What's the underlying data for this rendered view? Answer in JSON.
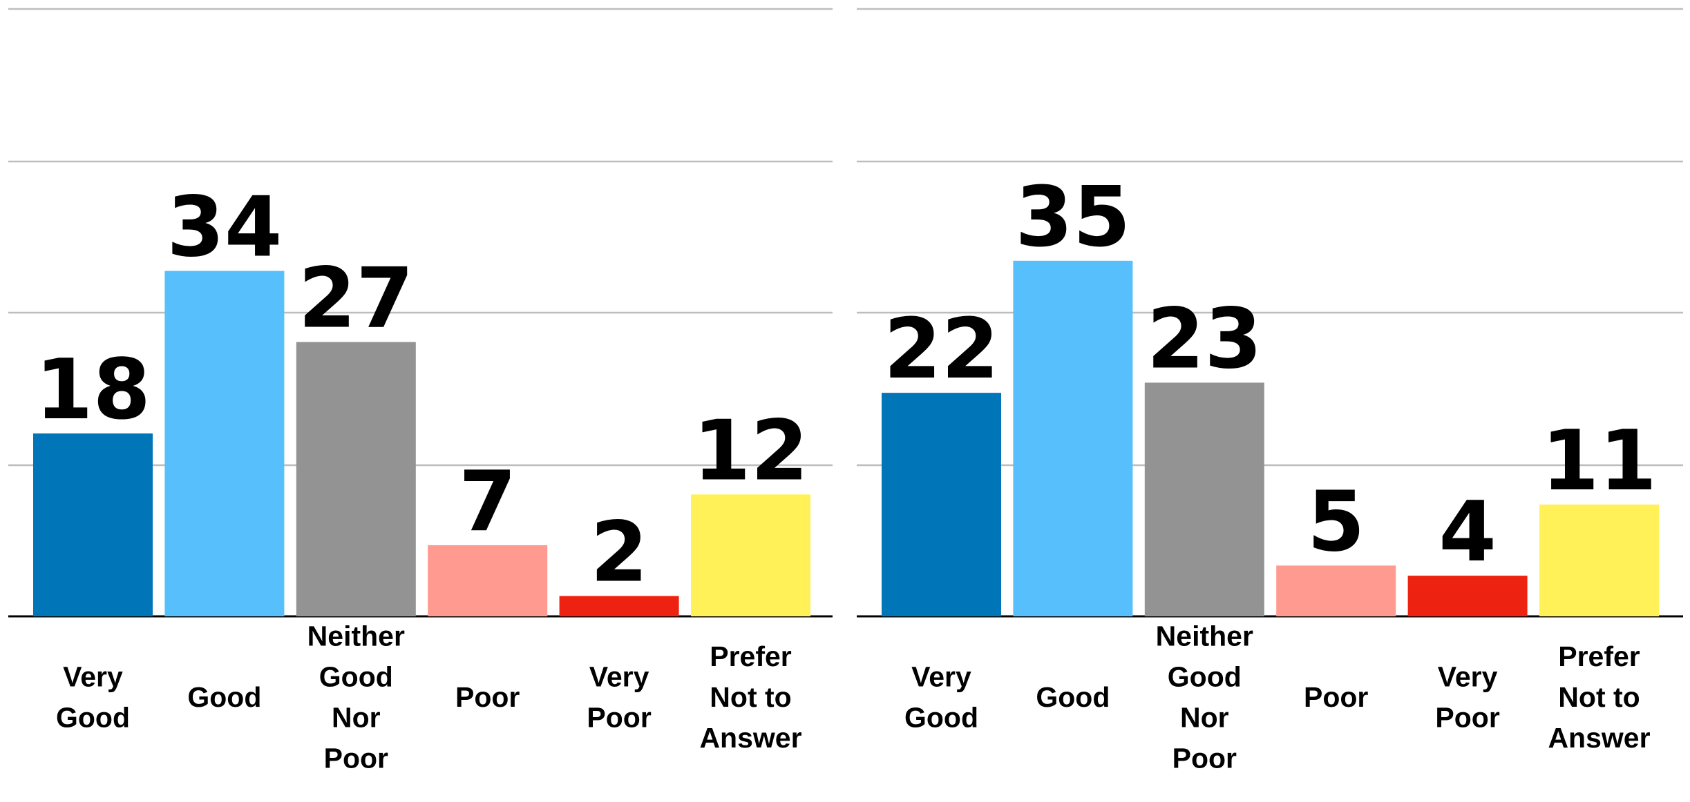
{
  "chart_data": [
    {
      "type": "bar",
      "categories": [
        [
          "Very",
          "Good"
        ],
        [
          "Good"
        ],
        [
          "Neither",
          "Good",
          "Nor",
          "Poor"
        ],
        [
          "Poor"
        ],
        [
          "Very",
          "Poor"
        ],
        [
          "Prefer",
          "Not to",
          "Answer"
        ]
      ],
      "values": [
        18,
        34,
        27,
        7,
        2,
        12
      ],
      "colors": [
        "#0075b8",
        "#57bffb",
        "#939393",
        "#ff9a90",
        "#ee2211",
        "#fff157"
      ],
      "ylim": [
        0,
        60
      ],
      "grid": true,
      "title": "",
      "xlabel": "",
      "ylabel": ""
    },
    {
      "type": "bar",
      "categories": [
        [
          "Very",
          "Good"
        ],
        [
          "Good"
        ],
        [
          "Neither",
          "Good",
          "Nor",
          "Poor"
        ],
        [
          "Poor"
        ],
        [
          "Very",
          "Poor"
        ],
        [
          "Prefer",
          "Not to",
          "Answer"
        ]
      ],
      "values": [
        22,
        35,
        23,
        5,
        4,
        11
      ],
      "colors": [
        "#0075b8",
        "#57bffb",
        "#939393",
        "#ff9a90",
        "#ee2211",
        "#fff157"
      ],
      "ylim": [
        0,
        60
      ],
      "grid": true,
      "title": "",
      "xlabel": "",
      "ylabel": ""
    }
  ]
}
